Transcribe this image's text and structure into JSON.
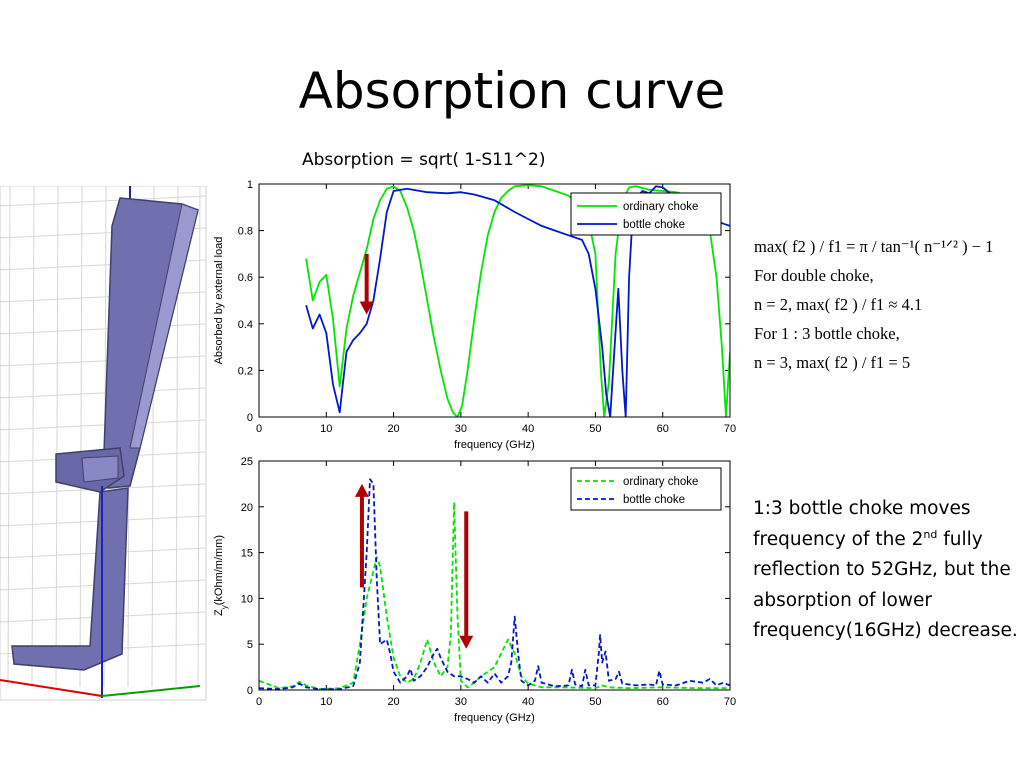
{
  "slide": {
    "title": "Absorption curve",
    "formula": "Absorption = sqrt( 1-S11^2)",
    "equations": [
      "max( f2 ) / f1 = π / tan⁻¹( n⁻¹ᐟ² ) − 1",
      "For double choke,",
      "n = 2, max( f2 ) / f1 ≈ 4.1",
      "For 1 : 3 bottle choke,",
      "n = 3, max( f2 ) / f1 = 5"
    ],
    "note": {
      "part1": "1:3 bottle choke moves frequency of the 2",
      "sup": "nd",
      "part2": " fully reflection to 52GHz, but the absorption of lower frequency(16GHz) decrease."
    }
  },
  "colors": {
    "ordinary": "#00e600",
    "bottle": "#0018c8",
    "arrow": "#b00000",
    "model_fill": "#7070b0"
  },
  "chart_data": [
    {
      "type": "line",
      "xlabel": "frequency (GHz)",
      "ylabel": "Absorbed by external load",
      "xlim": [
        0,
        70
      ],
      "ylim": [
        0,
        1
      ],
      "xticks": [
        0,
        10,
        20,
        30,
        40,
        50,
        60,
        70
      ],
      "yticks": [
        0,
        0.2,
        0.4,
        0.6,
        0.8,
        1
      ],
      "ytick_labels": [
        "0",
        "0.2",
        "0.4",
        "0.6",
        "0.8",
        "1"
      ],
      "legend": "top-right",
      "series": [
        {
          "name": "ordinary choke",
          "style": "solid",
          "x": [
            7,
            8,
            9,
            10,
            11,
            12,
            13,
            14,
            15,
            16,
            17,
            18,
            19,
            20,
            21,
            22,
            23,
            24,
            25,
            26,
            27,
            28,
            28.8,
            29.5,
            30.2,
            31,
            32,
            33,
            34,
            35,
            36,
            37,
            38,
            40,
            42,
            44,
            46,
            48,
            49,
            50,
            50.8,
            51.3,
            52,
            53,
            54,
            55,
            56,
            58,
            60,
            62,
            64,
            66,
            67,
            68,
            68.8,
            69.4,
            70
          ],
          "y": [
            0.68,
            0.5,
            0.58,
            0.61,
            0.42,
            0.13,
            0.38,
            0.52,
            0.62,
            0.72,
            0.85,
            0.93,
            0.98,
            0.99,
            0.97,
            0.9,
            0.8,
            0.66,
            0.5,
            0.34,
            0.2,
            0.08,
            0.02,
            0.0,
            0.05,
            0.2,
            0.42,
            0.62,
            0.78,
            0.88,
            0.94,
            0.97,
            0.99,
            0.995,
            0.99,
            0.97,
            0.95,
            0.9,
            0.84,
            0.7,
            0.2,
            0.0,
            0.15,
            0.7,
            0.93,
            0.985,
            0.99,
            0.975,
            0.97,
            0.965,
            0.95,
            0.88,
            0.8,
            0.6,
            0.3,
            0.0,
            0.28
          ]
        },
        {
          "name": "bottle choke",
          "style": "solid",
          "x": [
            7,
            8,
            9,
            10,
            11,
            12,
            13,
            14,
            15,
            16,
            17,
            18,
            19,
            20,
            22,
            25,
            28,
            30,
            32,
            35,
            38,
            40,
            42,
            44,
            46,
            48,
            49,
            50,
            51,
            51.6,
            52.2,
            52.8,
            53.4,
            54,
            54.5,
            55,
            55.6,
            56,
            57,
            58,
            59,
            60,
            62,
            64,
            66,
            68,
            70
          ],
          "y": [
            0.48,
            0.38,
            0.44,
            0.36,
            0.14,
            0.02,
            0.28,
            0.33,
            0.36,
            0.4,
            0.5,
            0.68,
            0.88,
            0.97,
            0.98,
            0.965,
            0.96,
            0.965,
            0.955,
            0.93,
            0.88,
            0.85,
            0.82,
            0.8,
            0.78,
            0.76,
            0.7,
            0.55,
            0.3,
            0.1,
            0.0,
            0.28,
            0.55,
            0.2,
            0.0,
            0.6,
            0.9,
            0.94,
            0.97,
            0.96,
            0.99,
            0.985,
            0.94,
            0.9,
            0.86,
            0.84,
            0.82
          ]
        }
      ],
      "annotations": [
        {
          "type": "arrow",
          "direction": "down",
          "x": 16,
          "y_from": 0.7,
          "y_to": 0.44
        }
      ]
    },
    {
      "type": "line",
      "xlabel": "frequency (GHz)",
      "ylabel": "Z_y (kOhm/m/mm)",
      "ylabel_main": "Z",
      "ylabel_sub": "y",
      "ylabel_rest": "(kOhm/m/mm)",
      "xlim": [
        0,
        70
      ],
      "ylim": [
        0,
        25
      ],
      "xticks": [
        0,
        10,
        20,
        30,
        40,
        50,
        60,
        70
      ],
      "yticks": [
        0,
        5,
        10,
        15,
        20,
        25
      ],
      "ytick_labels": [
        "0",
        "5",
        "10",
        "15",
        "20",
        "25"
      ],
      "legend": "top-right",
      "series": [
        {
          "name": "ordinary choke",
          "style": "dashed",
          "x": [
            0,
            3,
            5,
            6,
            7,
            9,
            12,
            14,
            15,
            16,
            17,
            17.5,
            18,
            19,
            20,
            21,
            22,
            23,
            24,
            25,
            26,
            27,
            28,
            28.5,
            29,
            29.5,
            30,
            31,
            32,
            33,
            34,
            35,
            36,
            37,
            38,
            39,
            40,
            42,
            45,
            50,
            51,
            52,
            55,
            60,
            65,
            70
          ],
          "y": [
            1.0,
            0.2,
            0.4,
            0.9,
            0.5,
            0.1,
            0.2,
            0.8,
            5.0,
            10.0,
            13.0,
            14.5,
            13.5,
            8.0,
            3.5,
            1.5,
            0.8,
            1.2,
            3.0,
            5.5,
            3.0,
            1.5,
            2.5,
            6.0,
            20.5,
            8.0,
            1.0,
            0.3,
            0.8,
            1.5,
            2.0,
            2.5,
            4.0,
            5.5,
            4.0,
            1.5,
            0.7,
            0.3,
            0.3,
            0.2,
            0.5,
            0.3,
            0.2,
            0.3,
            0.2,
            0.2
          ]
        },
        {
          "name": "bottle choke",
          "style": "dashed",
          "x": [
            0,
            3,
            5,
            6,
            7,
            9,
            12,
            14,
            15,
            16,
            16.5,
            17,
            17.5,
            18,
            19,
            19.5,
            20,
            21,
            22,
            22.5,
            23,
            24,
            25,
            26,
            26.5,
            27,
            28,
            29,
            30,
            31,
            32,
            33,
            34,
            35,
            36,
            37,
            37.5,
            38,
            38.5,
            39,
            40,
            41,
            41.5,
            42,
            44,
            46,
            46.5,
            47,
            48,
            48.5,
            49,
            50,
            50.5,
            50.7,
            51,
            51.5,
            52,
            53,
            53.5,
            54,
            56,
            58,
            59,
            59.5,
            60,
            62,
            64,
            66,
            67,
            68,
            69,
            70
          ],
          "y": [
            0.2,
            0.1,
            0.3,
            0.7,
            0.3,
            0.1,
            0.1,
            0.4,
            3.0,
            15.0,
            23.0,
            22.5,
            12.0,
            5.0,
            5.5,
            4.0,
            2.0,
            0.8,
            1.5,
            2.3,
            1.0,
            1.5,
            2.5,
            4.0,
            4.5,
            3.5,
            2.0,
            1.5,
            1.5,
            1.2,
            0.8,
            1.5,
            0.8,
            1.8,
            0.8,
            1.5,
            3.0,
            8.0,
            4.0,
            1.0,
            0.5,
            1.0,
            2.6,
            0.8,
            0.4,
            0.5,
            2.2,
            0.6,
            0.4,
            2.2,
            0.5,
            0.5,
            4.0,
            6.0,
            3.0,
            4.2,
            1.0,
            1.2,
            2.0,
            0.7,
            0.5,
            0.6,
            0.5,
            2.1,
            0.6,
            0.5,
            1.0,
            0.8,
            1.2,
            0.5,
            0.8,
            0.5
          ]
        }
      ],
      "annotations": [
        {
          "type": "arrow",
          "direction": "up",
          "x": 15.3,
          "y_from": 11.2,
          "y_to": 22.5
        },
        {
          "type": "arrow",
          "direction": "down",
          "x": 30.8,
          "y_from": 19.5,
          "y_to": 4.5
        }
      ]
    }
  ]
}
